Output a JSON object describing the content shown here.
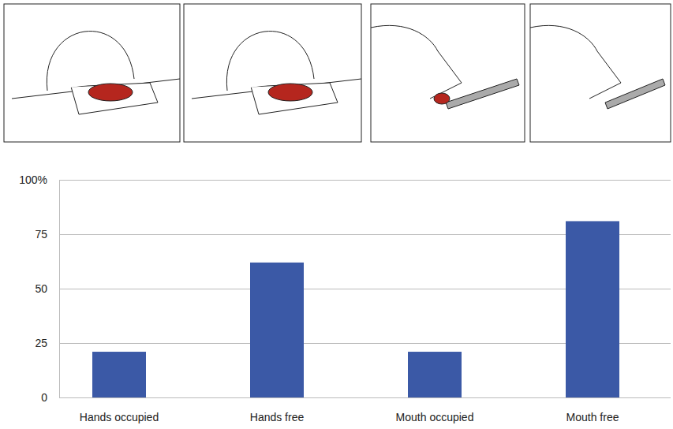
{
  "chart_data": {
    "type": "bar",
    "categories": [
      "Hands occupied",
      "Hands free",
      "Mouth occupied",
      "Mouth free"
    ],
    "values": [
      21,
      62,
      21,
      81
    ],
    "color": "#3b59a6",
    "ylim": [
      0,
      100
    ],
    "yticks": [
      0,
      25,
      50,
      75,
      {
        "value": 100,
        "label": "100%"
      }
    ],
    "grid": true
  }
}
